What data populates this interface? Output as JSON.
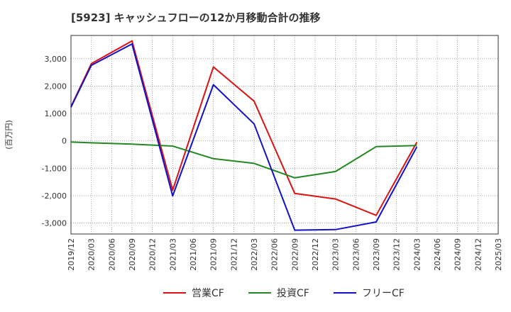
{
  "title": "[5923]  キャッシュフローの12か月移動合計の推移",
  "chart_data": {
    "type": "line",
    "title": "[5923]  キャッシュフローの12か月移動合計の推移",
    "ylabel": "(百万円)",
    "xlabel": "",
    "ylim": [
      -3400,
      3850
    ],
    "yticks": [
      3000,
      2000,
      1000,
      0,
      -1000,
      -2000,
      -3000
    ],
    "ytick_labels": [
      "3,000",
      "2,000",
      "1,000",
      "0",
      "-1,000",
      "-2,000",
      "-3,000"
    ],
    "x_tick_labels": [
      "2019/12",
      "2020/03",
      "2020/06",
      "2020/09",
      "2020/12",
      "2021/03",
      "2021/06",
      "2021/09",
      "2021/12",
      "2022/03",
      "2022/06",
      "2022/09",
      "2022/12",
      "2023/03",
      "2023/06",
      "2023/09",
      "2023/12",
      "2024/03",
      "2024/06",
      "2024/09",
      "2024/12",
      "2025/03"
    ],
    "grid": true,
    "legend_position": "bottom",
    "series": [
      {
        "name": "営業CF",
        "color": "#dd1111",
        "points": [
          {
            "x": "2019/12",
            "y": 1250
          },
          {
            "x": "2020/03",
            "y": 2820
          },
          {
            "x": "2020/09",
            "y": 3650
          },
          {
            "x": "2021/03",
            "y": -1800
          },
          {
            "x": "2021/09",
            "y": 2700
          },
          {
            "x": "2022/03",
            "y": 1450
          },
          {
            "x": "2022/09",
            "y": -1920
          },
          {
            "x": "2023/03",
            "y": -2120
          },
          {
            "x": "2023/09",
            "y": -2720
          },
          {
            "x": "2024/03",
            "y": -50
          }
        ]
      },
      {
        "name": "投資CF",
        "color": "#228822",
        "points": [
          {
            "x": "2019/12",
            "y": -40
          },
          {
            "x": "2020/03",
            "y": -70
          },
          {
            "x": "2020/09",
            "y": -120
          },
          {
            "x": "2021/03",
            "y": -190
          },
          {
            "x": "2021/09",
            "y": -650
          },
          {
            "x": "2022/03",
            "y": -820
          },
          {
            "x": "2022/09",
            "y": -1350
          },
          {
            "x": "2023/03",
            "y": -1120
          },
          {
            "x": "2023/09",
            "y": -210
          },
          {
            "x": "2024/03",
            "y": -170
          }
        ]
      },
      {
        "name": "フリーCF",
        "color": "#1111cc",
        "points": [
          {
            "x": "2019/12",
            "y": 1230
          },
          {
            "x": "2020/03",
            "y": 2760
          },
          {
            "x": "2020/09",
            "y": 3540
          },
          {
            "x": "2021/03",
            "y": -2010
          },
          {
            "x": "2021/09",
            "y": 2050
          },
          {
            "x": "2022/03",
            "y": 620
          },
          {
            "x": "2022/09",
            "y": -3260
          },
          {
            "x": "2023/03",
            "y": -3240
          },
          {
            "x": "2023/09",
            "y": -2960
          },
          {
            "x": "2024/03",
            "y": -220
          }
        ]
      }
    ]
  }
}
